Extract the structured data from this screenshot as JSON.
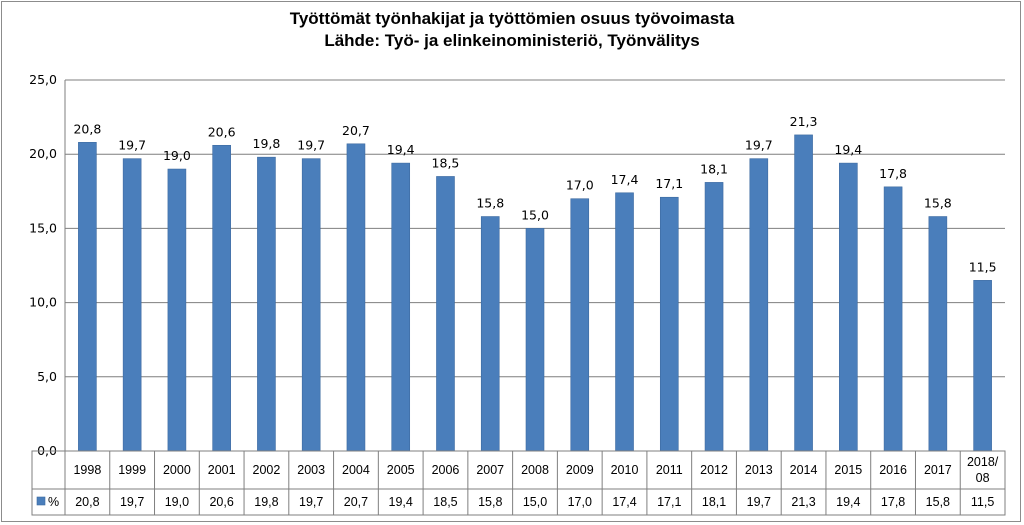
{
  "chart_data": {
    "type": "bar",
    "title": "Työttömät työnhakijat ja työttömien osuus työvoimasta",
    "subtitle": "Lähde: Työ- ja elinkeinoministeriö, Työnvälitys",
    "categories": [
      "1998",
      "1999",
      "2000",
      "2001",
      "2002",
      "2003",
      "2004",
      "2005",
      "2006",
      "2007",
      "2008",
      "2009",
      "2010",
      "2011",
      "2012",
      "2013",
      "2014",
      "2015",
      "2016",
      "2017",
      "2018/ 08"
    ],
    "series": [
      {
        "name": "%",
        "values": [
          20.8,
          19.7,
          19.0,
          20.6,
          19.8,
          19.7,
          20.7,
          19.4,
          18.5,
          15.8,
          15.0,
          17.0,
          17.4,
          17.1,
          18.1,
          19.7,
          21.3,
          19.4,
          17.8,
          15.8,
          11.5
        ]
      }
    ],
    "value_labels": [
      "20,8",
      "19,7",
      "19,0",
      "20,6",
      "19,8",
      "19,7",
      "20,7",
      "19,4",
      "18,5",
      "15,8",
      "15,0",
      "17,0",
      "17,4",
      "17,1",
      "18,1",
      "19,7",
      "21,3",
      "19,4",
      "17,8",
      "15,8",
      "11,5"
    ],
    "yticks": [
      0,
      5,
      10,
      15,
      20,
      25
    ],
    "ytick_labels": [
      "0,0",
      "5,0",
      "10,0",
      "15,0",
      "20,0",
      "25,0"
    ],
    "ylim": [
      0,
      25
    ],
    "grid": true,
    "legend": "data-table-left",
    "data_table": true,
    "colors": {
      "bar": "#4a7ebb",
      "bar_edge": "#3d6aa0",
      "grid": "#7f7f7f",
      "axis": "#7f7f7f"
    }
  }
}
